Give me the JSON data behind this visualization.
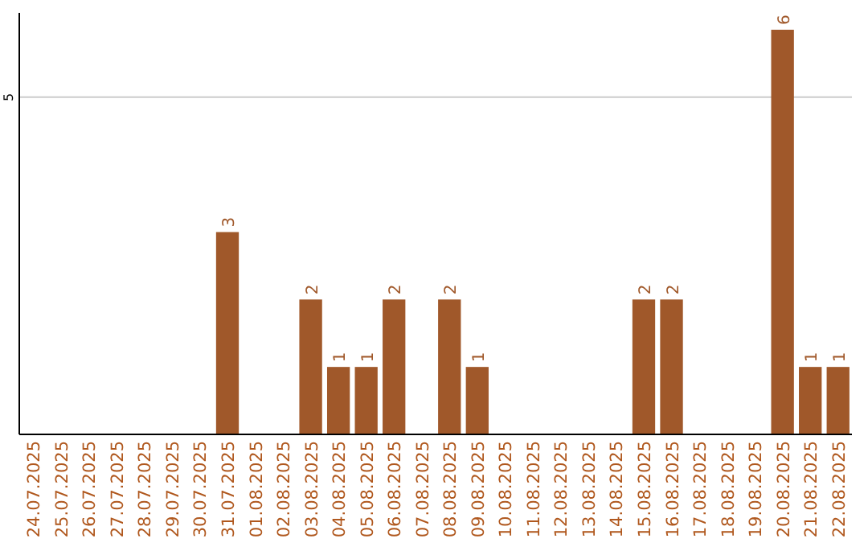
{
  "chart_data": {
    "type": "bar",
    "categories": [
      "24.07.2025",
      "25.07.2025",
      "26.07.2025",
      "27.07.2025",
      "28.07.2025",
      "29.07.2025",
      "30.07.2025",
      "31.07.2025",
      "01.08.2025",
      "02.08.2025",
      "03.08.2025",
      "04.08.2025",
      "05.08.2025",
      "06.08.2025",
      "07.08.2025",
      "08.08.2025",
      "09.08.2025",
      "10.08.2025",
      "11.08.2025",
      "12.08.2025",
      "13.08.2025",
      "14.08.2025",
      "15.08.2025",
      "16.08.2025",
      "17.08.2025",
      "18.08.2025",
      "19.08.2025",
      "20.08.2025",
      "21.08.2025",
      "22.08.2025"
    ],
    "values": [
      0,
      0,
      0,
      0,
      0,
      0,
      0,
      3,
      0,
      0,
      2,
      1,
      1,
      2,
      0,
      2,
      1,
      0,
      0,
      0,
      0,
      0,
      2,
      2,
      0,
      0,
      0,
      6,
      1,
      1
    ],
    "value_labels": [
      null,
      null,
      null,
      null,
      null,
      null,
      null,
      "3",
      null,
      null,
      "2",
      "1",
      "1",
      "2",
      null,
      "2",
      "1",
      null,
      null,
      null,
      null,
      null,
      "2",
      "2",
      null,
      null,
      null,
      "6",
      "1",
      "1"
    ],
    "color": "#a0582a",
    "ylim": [
      0,
      6.25
    ],
    "yticks": [
      5
    ],
    "grid": "y"
  }
}
